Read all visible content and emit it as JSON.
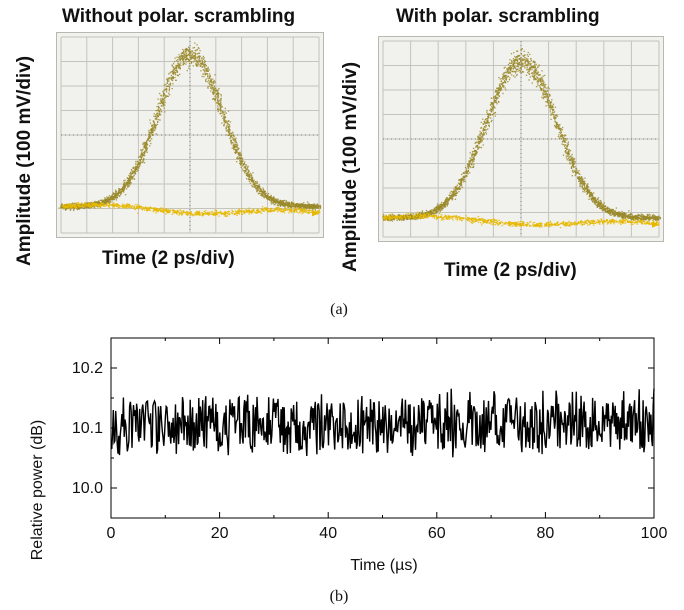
{
  "figure": {
    "caption_a": "(a)",
    "caption_b": "(b)"
  },
  "chart_data": [
    {
      "type": "scatter",
      "title": "Without polar. scrambling",
      "xlabel": "Time (2 ps/div)",
      "ylabel": "Amplitude (100 mV/div)",
      "grid": true,
      "divisions": {
        "x": 10,
        "y": 8
      },
      "trace_color": "#9a8a2a",
      "baseline_color": "#e6b800",
      "pulse": {
        "peak_div": 7.3,
        "baseline_div": 1.1,
        "center_div": 5.0,
        "fwhm_div": 3.0,
        "baseline_end_div": 0.8
      }
    },
    {
      "type": "scatter",
      "title": "With polar. scrambling",
      "xlabel": "Time (2 ps/div)",
      "ylabel": "Amplitude (100 mV/div)",
      "grid": true,
      "divisions": {
        "x": 10,
        "y": 8
      },
      "trace_color": "#9a8a2a",
      "baseline_color": "#e6b800",
      "pulse": {
        "peak_div": 7.2,
        "baseline_div": 0.8,
        "center_div": 5.0,
        "fwhm_div": 3.0,
        "baseline_end_div": 0.5
      }
    },
    {
      "type": "line",
      "title": "",
      "xlabel": "Time (µs)",
      "ylabel": "Relative power (dB)",
      "xlim": [
        0,
        100
      ],
      "ylim": [
        9.95,
        10.25
      ],
      "xticks": [
        0,
        20,
        40,
        60,
        80,
        100
      ],
      "yticks": [
        10.0,
        10.1,
        10.2
      ],
      "ytick_labels": [
        "10.0",
        "10.1",
        "10.2"
      ],
      "xtick_labels": [
        "0",
        "20",
        "40",
        "60",
        "80",
        "100"
      ],
      "series": [
        {
          "mean": 10.1,
          "noise_peak_to_peak": 0.1,
          "drift_end": 0.01,
          "samples": 700,
          "color": "#000000"
        }
      ]
    }
  ]
}
